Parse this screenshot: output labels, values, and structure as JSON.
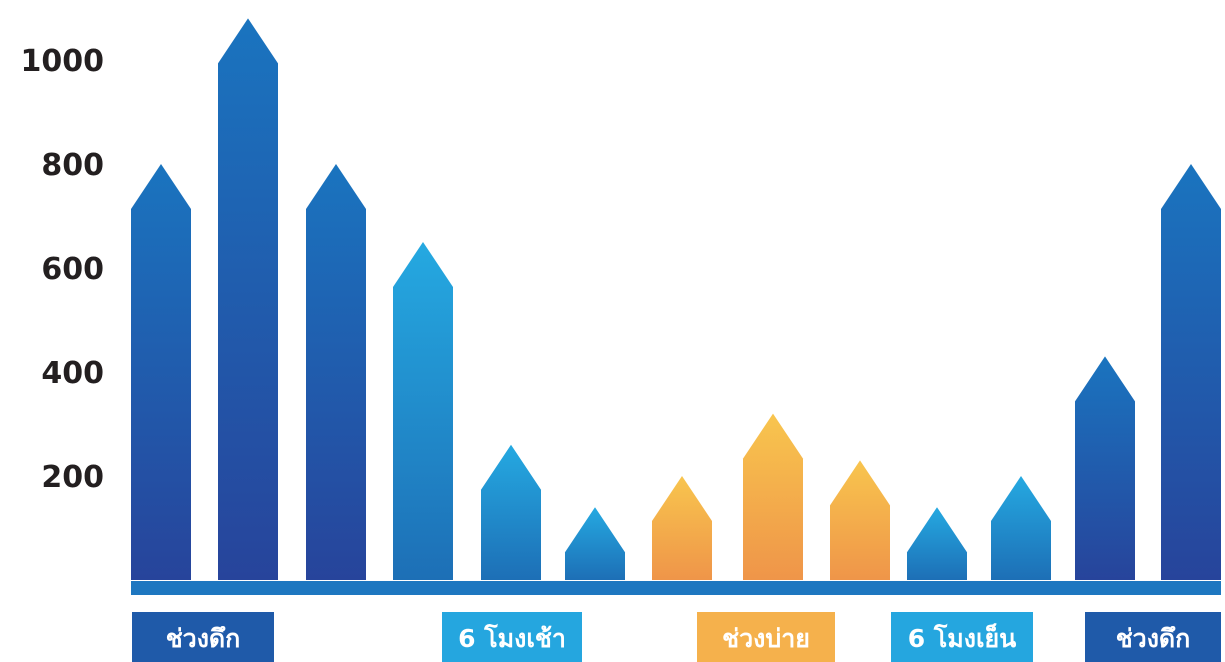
{
  "chart_data": {
    "type": "bar",
    "title": "",
    "xlabel": "",
    "ylabel": "",
    "ylim": [
      0,
      1100
    ],
    "yticks": [
      "200",
      "400",
      "600",
      "800",
      "1000"
    ],
    "bar_shape": "arrow",
    "grid": false,
    "legend": "none",
    "values": [
      800,
      1080,
      800,
      650,
      260,
      140,
      200,
      320,
      230,
      140,
      200,
      430,
      800
    ],
    "bar_groups": [
      "night",
      "night",
      "night",
      "morning",
      "morning",
      "morning",
      "afternoon",
      "afternoon",
      "afternoon",
      "morning",
      "morning",
      "night",
      "night"
    ],
    "period_labels": [
      {
        "text": "ช่วงดึก",
        "group": "night",
        "bar_from": 0,
        "bar_to": 1
      },
      {
        "text": "6 โมงเช้า",
        "group": "morning",
        "bar_from": 3,
        "bar_to": 5
      },
      {
        "text": "ช่วงบ่าย",
        "group": "afternoon",
        "bar_from": 6,
        "bar_to": 8
      },
      {
        "text": "6 โมงเย็น",
        "group": "morning",
        "bar_from": 9,
        "bar_to": 10
      },
      {
        "text": "ช่วงดึก",
        "group": "night",
        "bar_from": 11,
        "bar_to": 12
      }
    ],
    "colors": {
      "night": [
        "#1a74bf",
        "#27449b"
      ],
      "morning": [
        "#25a9e1",
        "#1d6fb6"
      ],
      "afternoon": [
        "#f8c54e",
        "#ef9549"
      ],
      "baseline": "#1e77c0",
      "label_night": "#1f5aa9",
      "label_morning": "#25a6df",
      "label_afternoon": "#f5b14c",
      "tick_text": "#231f20"
    }
  }
}
